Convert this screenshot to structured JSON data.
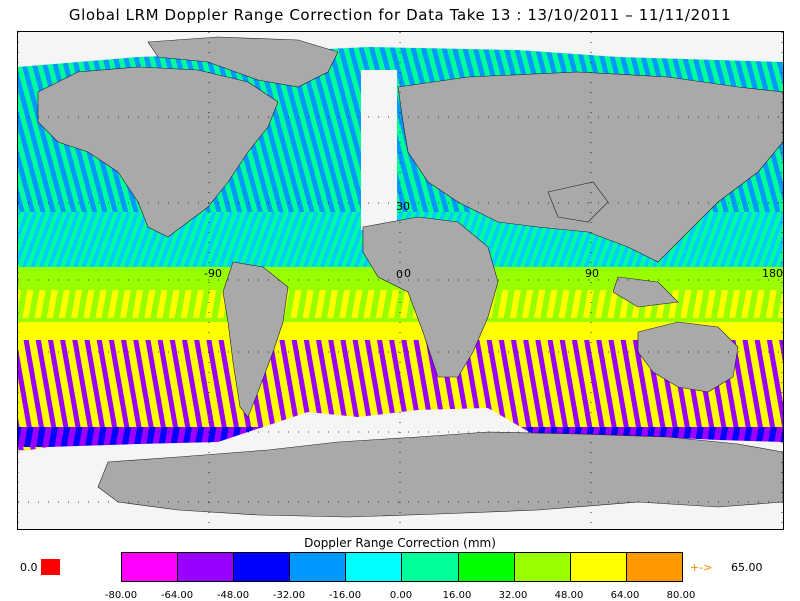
{
  "title": "Global LRM Doppler Range Correction for Data Take 13 : 13/10/2011 – 11/11/2011",
  "map": {
    "lat_labels": [
      "30",
      "0"
    ],
    "lon_labels": [
      "-90",
      "0",
      "90",
      "180"
    ],
    "land_color": "#a9a9a9",
    "no_data_color": "#f5f5f5"
  },
  "colorbar": {
    "title": "Doppler Range Correction (mm)",
    "colors": [
      "#ff00ff",
      "#9900ff",
      "#0000ff",
      "#0099ff",
      "#00ffff",
      "#00ff99",
      "#00ff00",
      "#99ff00",
      "#ffff00",
      "#ff9900"
    ],
    "ticks": [
      "-80.00",
      "-64.00",
      "-48.00",
      "-32.00",
      "-16.00",
      "0.00",
      "16.00",
      "32.00",
      "48.00",
      "64.00",
      "80.00"
    ],
    "missing_label": "0.0",
    "missing_color": "#ff0000",
    "over_label": "+->",
    "over_value": "65.00"
  }
}
